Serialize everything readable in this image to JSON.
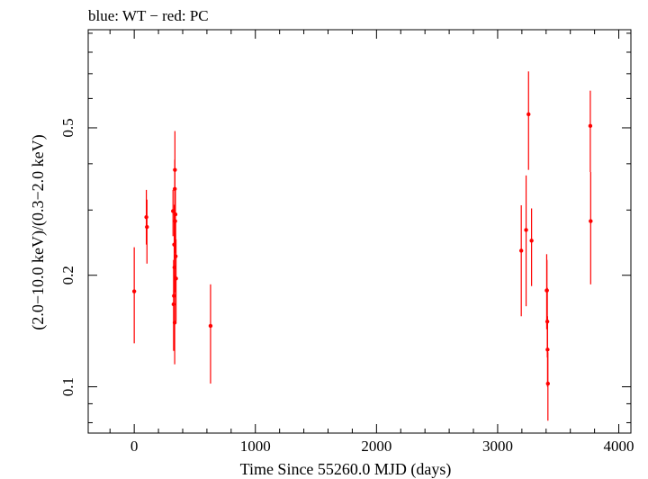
{
  "chart_data": {
    "type": "scatter",
    "title": "blue: WT − red: PC",
    "xlabel": "Time Since 55260.0 MJD (days)",
    "ylabel": "(2.0−10.0 keV)/(0.3−2.0 keV)",
    "xlim": [
      -380,
      4100
    ],
    "ylim": [
      0.075,
      0.92
    ],
    "yscale": "log",
    "grid": false,
    "x_ticks": [
      0,
      1000,
      2000,
      3000,
      4000
    ],
    "x_tick_labels": [
      "0",
      "1000",
      "2000",
      "3000",
      "4000"
    ],
    "y_ticks": [
      0.1,
      0.2,
      0.5
    ],
    "y_tick_labels": [
      "0.1",
      "0.2",
      "0.5"
    ],
    "series": [
      {
        "color": "#ff0000",
        "points": [
          {
            "x": 0,
            "y": 0.181,
            "lo": 0.131,
            "hi": 0.238
          },
          {
            "x": 100,
            "y": 0.287,
            "lo": 0.242,
            "hi": 0.34
          },
          {
            "x": 105,
            "y": 0.27,
            "lo": 0.215,
            "hi": 0.32
          },
          {
            "x": 320,
            "y": 0.298,
            "lo": 0.255,
            "hi": 0.34
          },
          {
            "x": 325,
            "y": 0.167,
            "lo": 0.125,
            "hi": 0.22
          },
          {
            "x": 328,
            "y": 0.176,
            "lo": 0.14,
            "hi": 0.215
          },
          {
            "x": 330,
            "y": 0.242,
            "lo": 0.17,
            "hi": 0.31
          },
          {
            "x": 332,
            "y": 0.21,
            "lo": 0.17,
            "hi": 0.26
          },
          {
            "x": 334,
            "y": 0.149,
            "lo": 0.115,
            "hi": 0.2
          },
          {
            "x": 335,
            "y": 0.342,
            "lo": 0.28,
            "hi": 0.41
          },
          {
            "x": 336,
            "y": 0.385,
            "lo": 0.3,
            "hi": 0.49
          },
          {
            "x": 338,
            "y": 0.28,
            "lo": 0.23,
            "hi": 0.34
          },
          {
            "x": 340,
            "y": 0.292,
            "lo": 0.25,
            "hi": 0.34
          },
          {
            "x": 342,
            "y": 0.225,
            "lo": 0.18,
            "hi": 0.28
          },
          {
            "x": 345,
            "y": 0.196,
            "lo": 0.15,
            "hi": 0.25
          },
          {
            "x": 630,
            "y": 0.146,
            "lo": 0.102,
            "hi": 0.189
          },
          {
            "x": 3195,
            "y": 0.233,
            "lo": 0.155,
            "hi": 0.309
          },
          {
            "x": 3235,
            "y": 0.265,
            "lo": 0.165,
            "hi": 0.372
          },
          {
            "x": 3255,
            "y": 0.544,
            "lo": 0.385,
            "hi": 0.71
          },
          {
            "x": 3280,
            "y": 0.248,
            "lo": 0.187,
            "hi": 0.303
          },
          {
            "x": 3405,
            "y": 0.182,
            "lo": 0.143,
            "hi": 0.228
          },
          {
            "x": 3407,
            "y": 0.182,
            "lo": 0.15,
            "hi": 0.22
          },
          {
            "x": 3410,
            "y": 0.15,
            "lo": 0.12,
            "hi": 0.185
          },
          {
            "x": 3412,
            "y": 0.126,
            "lo": 0.1,
            "hi": 0.155
          },
          {
            "x": 3415,
            "y": 0.102,
            "lo": 0.081,
            "hi": 0.124
          },
          {
            "x": 3765,
            "y": 0.506,
            "lo": 0.38,
            "hi": 0.63
          },
          {
            "x": 3768,
            "y": 0.28,
            "lo": 0.189,
            "hi": 0.38
          }
        ]
      }
    ]
  }
}
